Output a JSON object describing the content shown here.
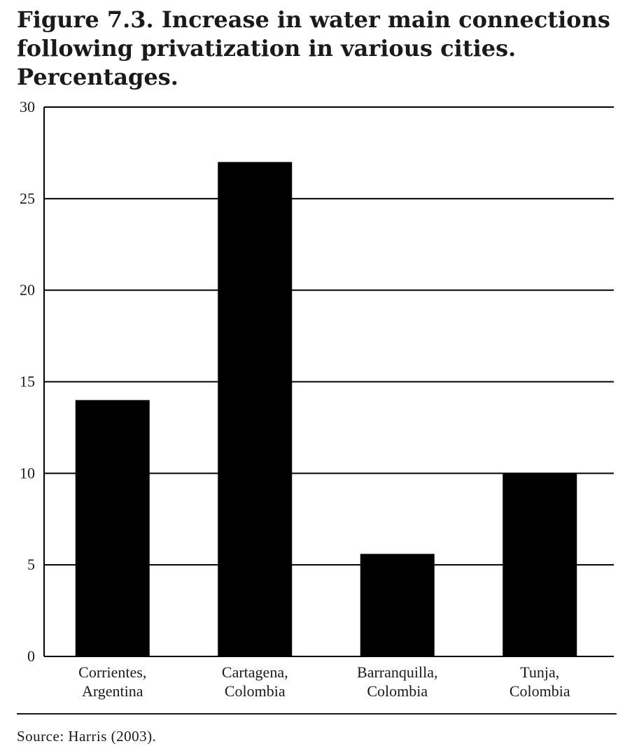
{
  "figure": {
    "title_lines": [
      "Figure 7.3. Increase in water main connections",
      "following privatization in various cities.",
      "Percentages."
    ],
    "source": "Source: Harris (2003)."
  },
  "chart_data": {
    "type": "bar",
    "title": "Figure 7.3. Increase in water main connections following privatization in various cities. Percentages.",
    "xlabel": "",
    "ylabel": "",
    "categories": [
      [
        "Corrientes,",
        "Argentina"
      ],
      [
        "Cartagena,",
        "Colombia"
      ],
      [
        "Barranquilla,",
        "Colombia"
      ],
      [
        "Tunja,",
        "Colombia"
      ]
    ],
    "values": [
      14,
      27,
      5.6,
      10
    ],
    "ylim": [
      0,
      30
    ],
    "yticks": [
      0,
      5,
      10,
      15,
      20,
      25,
      30
    ],
    "grid": true,
    "bar_color": "#000000",
    "legend": "none"
  }
}
